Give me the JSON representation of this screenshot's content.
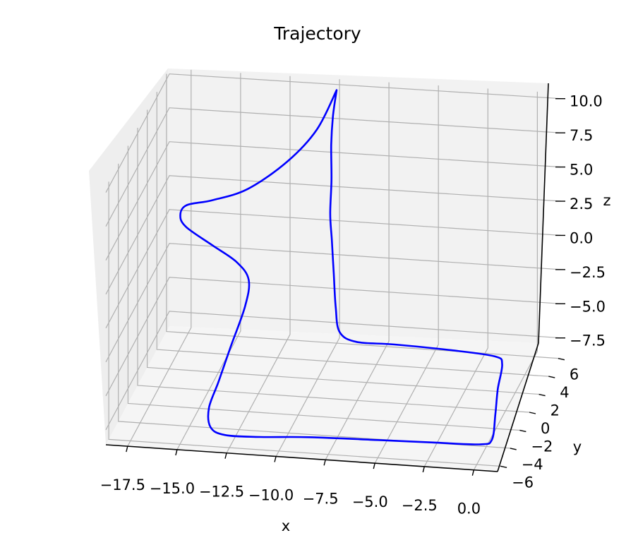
{
  "chart_data": {
    "type": "line",
    "projection": "3d",
    "title": "Trajectory",
    "xlabel": "x",
    "ylabel": "y",
    "zlabel": "z",
    "x_ticks": [
      "−17.5",
      "−15.0",
      "−12.5",
      "−10.0",
      "−7.5",
      "−5.0",
      "−2.5",
      "0.0"
    ],
    "y_ticks": [
      "−6",
      "−4",
      "−2",
      "0",
      "2",
      "4",
      "6"
    ],
    "z_ticks": [
      "−7.5",
      "−5.0",
      "−2.5",
      "0.0",
      "2.5",
      "5.0",
      "7.5",
      "10.0"
    ],
    "grid": true,
    "pane_color": "#f2f2f2",
    "grid_color": "#b0b0b0",
    "series": [
      {
        "color": "#0000ff",
        "points": [
          [
            -10.0,
            6.0,
            10.0
          ],
          [
            -11.0,
            6.0,
            7.0
          ],
          [
            -12.5,
            6.0,
            4.5
          ],
          [
            -14.5,
            6.0,
            2.3
          ],
          [
            -16.3,
            6.0,
            1.3
          ],
          [
            -17.6,
            6.0,
            0.8
          ],
          [
            -17.9,
            6.0,
            0.0
          ],
          [
            -17.6,
            6.0,
            -0.8
          ],
          [
            -16.3,
            6.0,
            -2.0
          ],
          [
            -15.0,
            5.8,
            -3.0
          ],
          [
            -14.2,
            5.0,
            -3.7
          ],
          [
            -13.9,
            3.0,
            -4.3
          ],
          [
            -13.9,
            0.0,
            -5.3
          ],
          [
            -13.9,
            -2.5,
            -6.2
          ],
          [
            -13.9,
            -4.5,
            -6.8
          ],
          [
            -13.6,
            -5.4,
            -7.6
          ],
          [
            -12.8,
            -5.7,
            -7.9
          ],
          [
            -11.0,
            -5.8,
            -7.8
          ],
          [
            -8.5,
            -5.9,
            -7.5
          ],
          [
            -5.0,
            -6.0,
            -7.3
          ],
          [
            -2.0,
            -6.0,
            -7.2
          ],
          [
            0.2,
            -6.0,
            -7.1
          ],
          [
            0.7,
            -5.7,
            -6.9
          ],
          [
            0.7,
            -5.0,
            -5.5
          ],
          [
            0.7,
            -4.5,
            -4.0
          ],
          [
            0.8,
            -4.0,
            -2.5
          ],
          [
            0.3,
            -3.5,
            -2.3
          ],
          [
            -2.0,
            -3.0,
            -2.4
          ],
          [
            -5.0,
            -2.5,
            -2.6
          ],
          [
            -7.0,
            -2.2,
            -2.8
          ],
          [
            -7.9,
            -2.0,
            -2.3
          ],
          [
            -8.1,
            -2.0,
            -0.5
          ],
          [
            -8.2,
            -2.0,
            2.0
          ],
          [
            -8.3,
            -2.0,
            4.5
          ],
          [
            -8.5,
            -1.5,
            6.0
          ],
          [
            -8.8,
            0.0,
            7.5
          ],
          [
            -9.3,
            2.0,
            8.7
          ],
          [
            -9.7,
            4.0,
            9.4
          ],
          [
            -10.0,
            6.0,
            10.0
          ]
        ]
      }
    ]
  }
}
